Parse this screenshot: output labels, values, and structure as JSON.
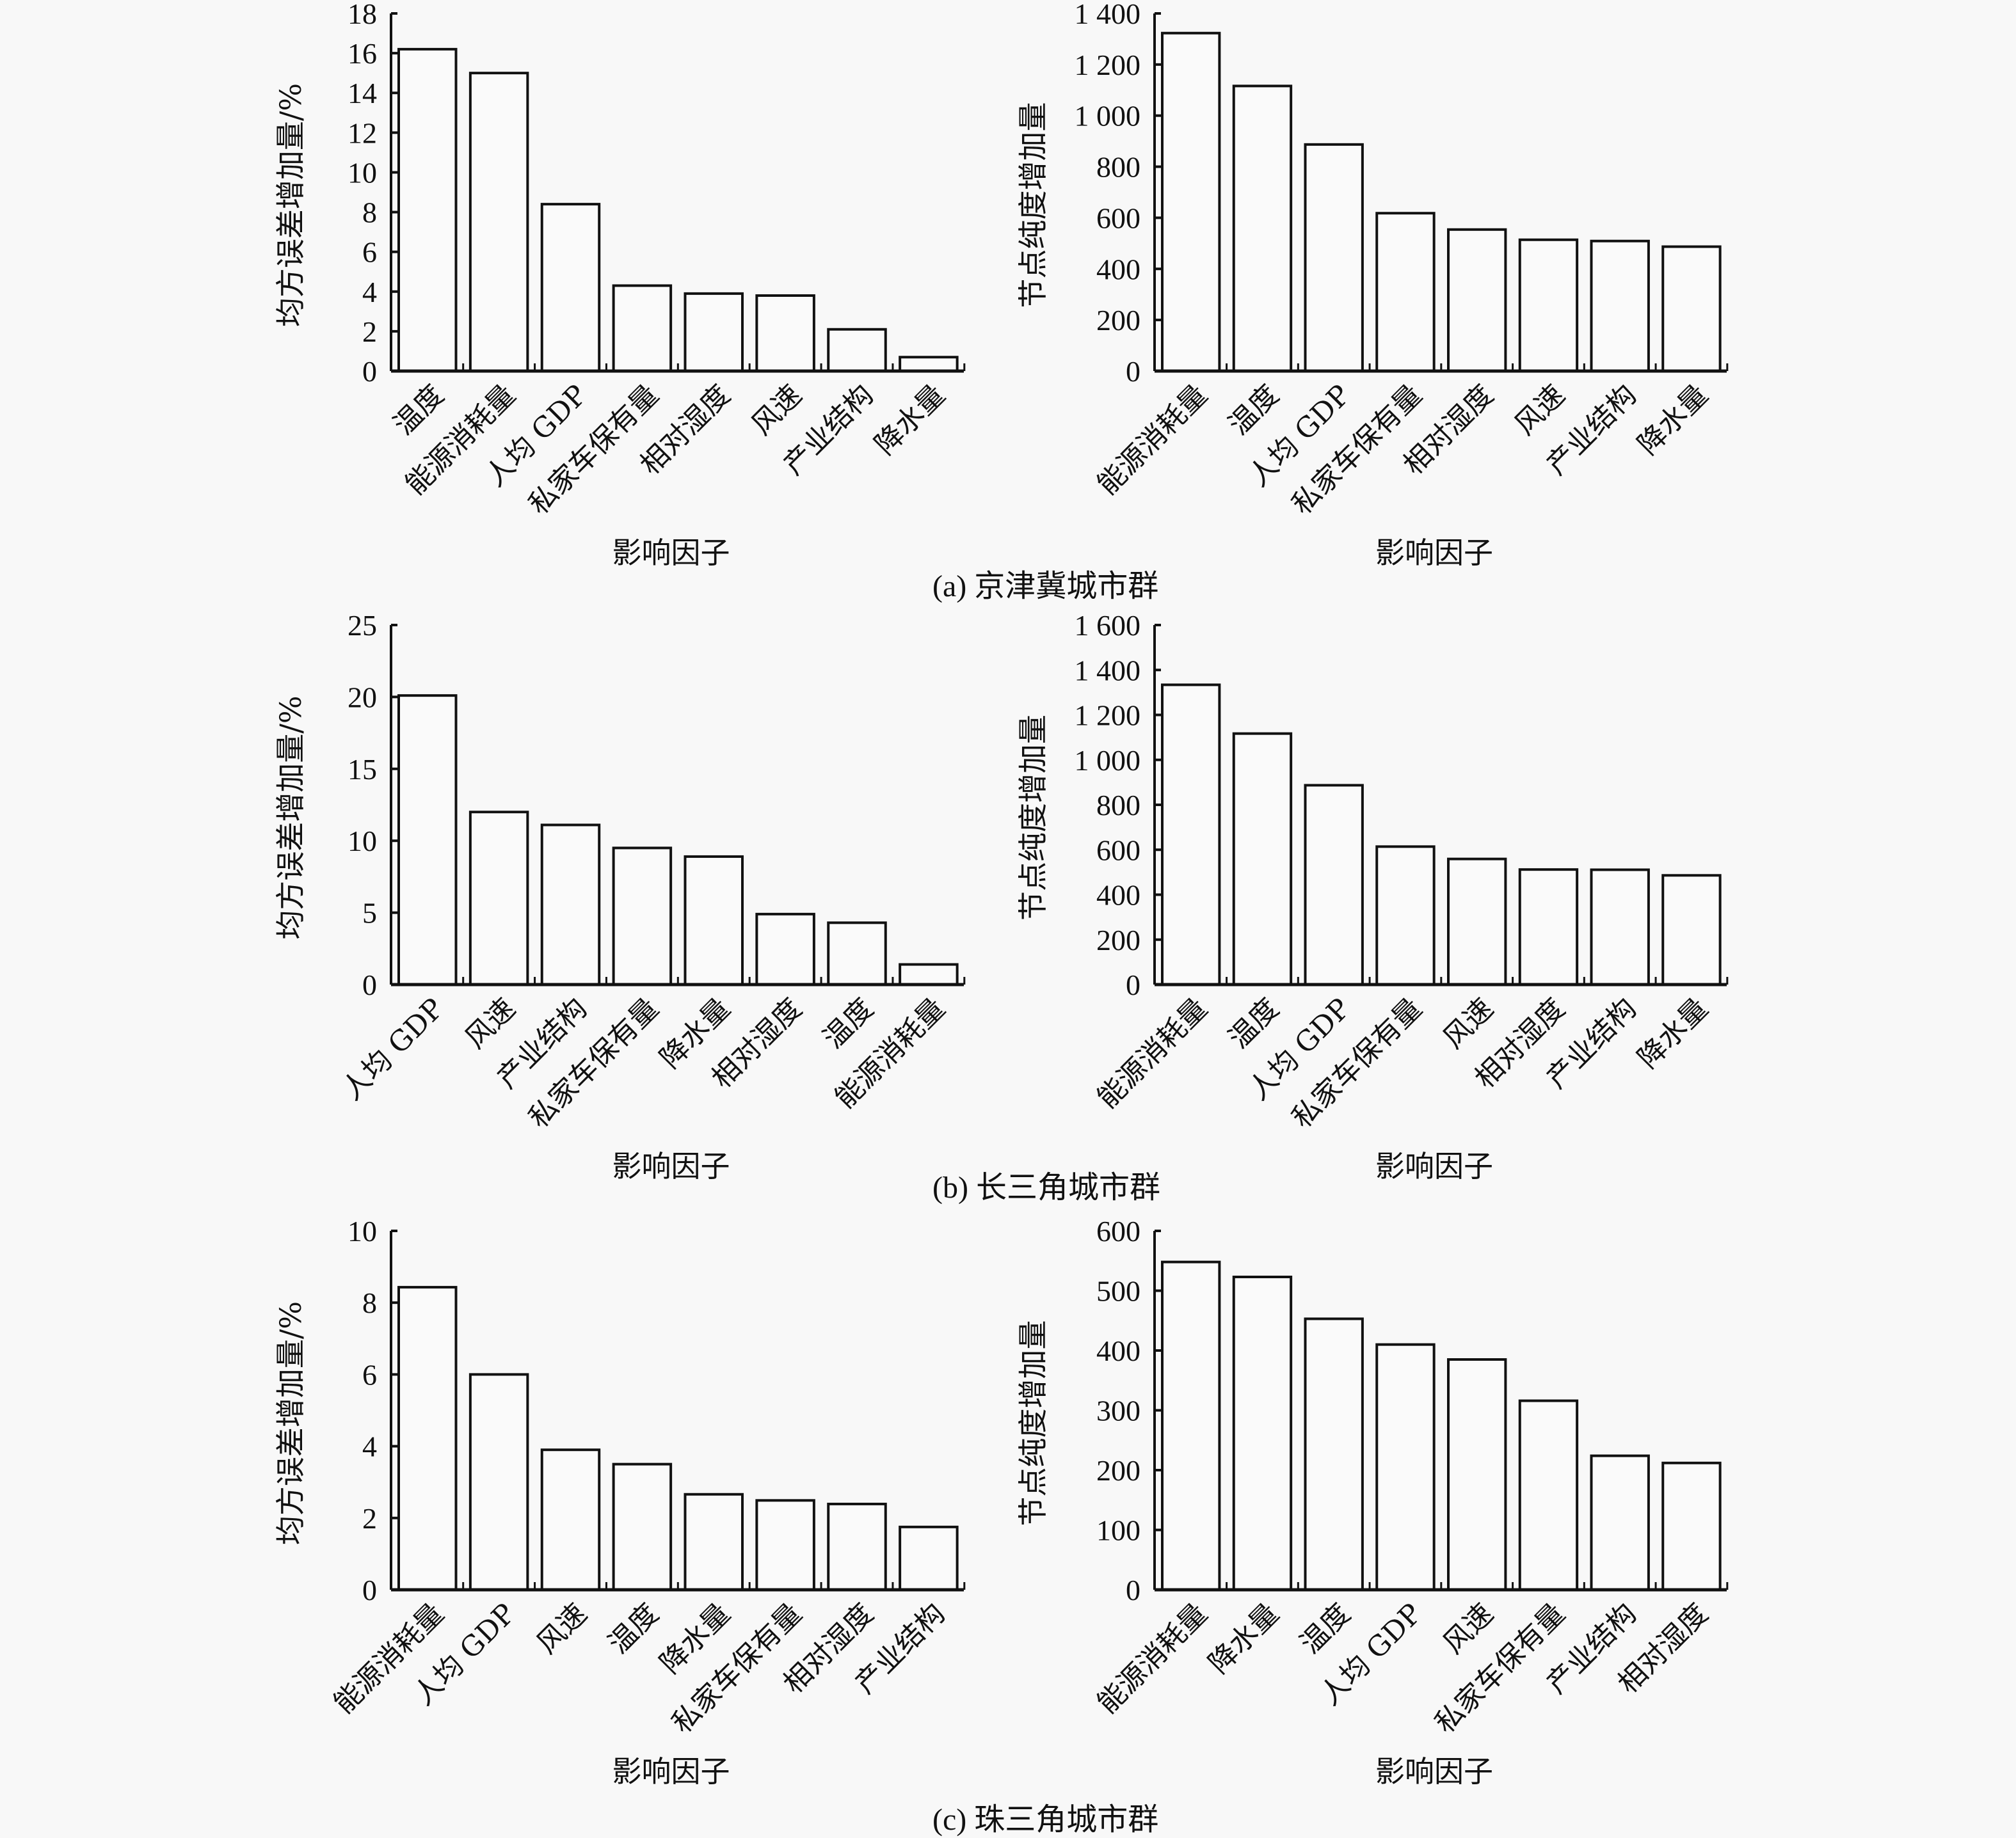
{
  "figure_captions": [
    "(a) 京津冀城市群",
    "(b) 长三角城市群",
    "(c) 珠三角城市群"
  ],
  "chart_data": [
    {
      "type": "bar",
      "panel": "a-left",
      "group": "(a) 京津冀城市群",
      "title": "",
      "xlabel": "影响因子",
      "ylabel": "均方误差增加量/%",
      "categories": [
        "温度",
        "能源消耗量",
        "人均 GDP",
        "私家车保有量",
        "相对湿度",
        "风速",
        "产业结构",
        "降水量"
      ],
      "values": [
        16.2,
        15.0,
        8.4,
        4.3,
        3.9,
        3.8,
        2.1,
        0.7
      ],
      "ylim": [
        0,
        18
      ],
      "yticks": [
        0,
        2,
        4,
        6,
        8,
        10,
        12,
        14,
        16,
        18
      ],
      "ytick_labels": [
        "0",
        "2",
        "4",
        "6",
        "8",
        "10",
        "12",
        "14",
        "16",
        "18"
      ],
      "grid": false
    },
    {
      "type": "bar",
      "panel": "a-right",
      "group": "(a) 京津冀城市群",
      "title": "",
      "xlabel": "影响因子",
      "ylabel": "节点纯度增加量",
      "categories": [
        "能源消耗量",
        "温度",
        "人均 GDP",
        "私家车保有量",
        "相对湿度",
        "风速",
        "产业结构",
        "降水量"
      ],
      "values": [
        1323,
        1116,
        887,
        618,
        554,
        514,
        509,
        487
      ],
      "ylim": [
        0,
        1400
      ],
      "yticks": [
        0,
        200,
        400,
        600,
        800,
        1000,
        1200,
        1400
      ],
      "ytick_labels": [
        "0",
        "200",
        "400",
        "600",
        "800",
        "1 000",
        "1 200",
        "1 400"
      ],
      "grid": false
    },
    {
      "type": "bar",
      "panel": "b-left",
      "group": "(b) 长三角城市群",
      "title": "",
      "xlabel": "影响因子",
      "ylabel": "均方误差增加量/%",
      "categories": [
        "人均 GDP",
        "风速",
        "产业结构",
        "私家车保有量",
        "降水量",
        "相对湿度",
        "温度",
        "能源消耗量"
      ],
      "values": [
        20.1,
        12.0,
        11.1,
        9.5,
        8.9,
        4.9,
        4.3,
        1.4
      ],
      "ylim": [
        0,
        25
      ],
      "yticks": [
        0,
        5,
        10,
        15,
        20,
        25
      ],
      "ytick_labels": [
        "0",
        "5",
        "10",
        "15",
        "20",
        "25"
      ],
      "grid": false
    },
    {
      "type": "bar",
      "panel": "b-right",
      "group": "(b) 长三角城市群",
      "title": "",
      "xlabel": "影响因子",
      "ylabel": "节点纯度增加量",
      "categories": [
        "能源消耗量",
        "温度",
        "人均 GDP",
        "私家车保有量",
        "风速",
        "相对湿度",
        "产业结构",
        "降水量"
      ],
      "values": [
        1334,
        1117,
        887,
        614,
        559,
        512,
        511,
        486
      ],
      "ylim": [
        0,
        1600
      ],
      "yticks": [
        0,
        200,
        400,
        600,
        800,
        1000,
        1200,
        1400,
        1600
      ],
      "ytick_labels": [
        "0",
        "200",
        "400",
        "600",
        "800",
        "1 000",
        "1 200",
        "1 400",
        "1 600"
      ],
      "grid": false
    },
    {
      "type": "bar",
      "panel": "c-left",
      "group": "(c) 珠三角城市群",
      "title": "",
      "xlabel": "影响因子",
      "ylabel": "均方误差增加量/%",
      "categories": [
        "能源消耗量",
        "人均 GDP",
        "风速",
        "温度",
        "降水量",
        "私家车保有量",
        "相对湿度",
        "产业结构"
      ],
      "values": [
        8.43,
        6.0,
        3.9,
        3.5,
        2.66,
        2.49,
        2.39,
        1.75
      ],
      "ylim": [
        0,
        10
      ],
      "yticks": [
        0,
        2,
        4,
        6,
        8,
        10
      ],
      "ytick_labels": [
        "0",
        "2",
        "4",
        "6",
        "8",
        "10"
      ],
      "grid": false
    },
    {
      "type": "bar",
      "panel": "c-right",
      "group": "(c) 珠三角城市群",
      "title": "",
      "xlabel": "影响因子",
      "ylabel": "节点纯度增加量",
      "categories": [
        "能源消耗量",
        "降水量",
        "温度",
        "人均 GDP",
        "风速",
        "私家车保有量",
        "产业结构",
        "相对湿度"
      ],
      "values": [
        548,
        523,
        453,
        410,
        385,
        316,
        224,
        212
      ],
      "ylim": [
        0,
        600
      ],
      "yticks": [
        0,
        100,
        200,
        300,
        400,
        500,
        600
      ],
      "ytick_labels": [
        "0",
        "100",
        "200",
        "300",
        "400",
        "500",
        "600"
      ],
      "grid": false
    }
  ]
}
